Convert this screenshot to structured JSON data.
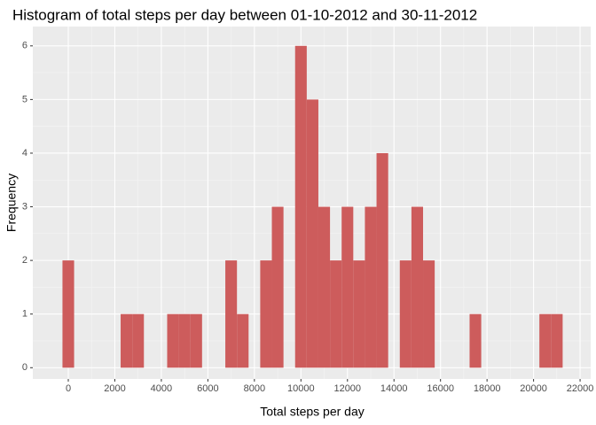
{
  "chart_data": {
    "type": "histogram",
    "title": "Histogram of total steps per day between 01-10-2012 and 30-11-2012",
    "x_label": "Total steps per day",
    "y_label": "Frequency",
    "bins": [
      -250,
      250,
      750,
      1250,
      1750,
      2250,
      2750,
      3250,
      3750,
      4250,
      4750,
      5250,
      5750,
      6250,
      6750,
      7250,
      7750,
      8250,
      8750,
      9250,
      9750,
      10250,
      10750,
      11250,
      11750,
      12250,
      12750,
      13250,
      13750,
      14250,
      14750,
      15250,
      15750,
      16250,
      16750,
      17250,
      17750,
      18250,
      18750,
      19250,
      19750,
      20250,
      20750,
      21250
    ],
    "values": [
      2,
      0,
      0,
      0,
      0,
      1,
      1,
      0,
      0,
      1,
      1,
      1,
      0,
      0,
      2,
      1,
      0,
      2,
      3,
      0,
      6,
      5,
      3,
      2,
      3,
      2,
      3,
      4,
      0,
      2,
      3,
      2,
      0,
      0,
      0,
      1,
      0,
      0,
      0,
      0,
      0,
      1,
      1
    ],
    "color": "#cd5c5c",
    "xlim": [
      -1525,
      22455
    ],
    "xticks": [
      0,
      2000,
      4000,
      6000,
      8000,
      10000,
      12000,
      14000,
      16000,
      18000,
      20000,
      22000
    ],
    "ylim": [
      -0.21,
      6.36
    ],
    "yticks": [
      0,
      1,
      2,
      3,
      4,
      5,
      6
    ],
    "grid": true
  }
}
